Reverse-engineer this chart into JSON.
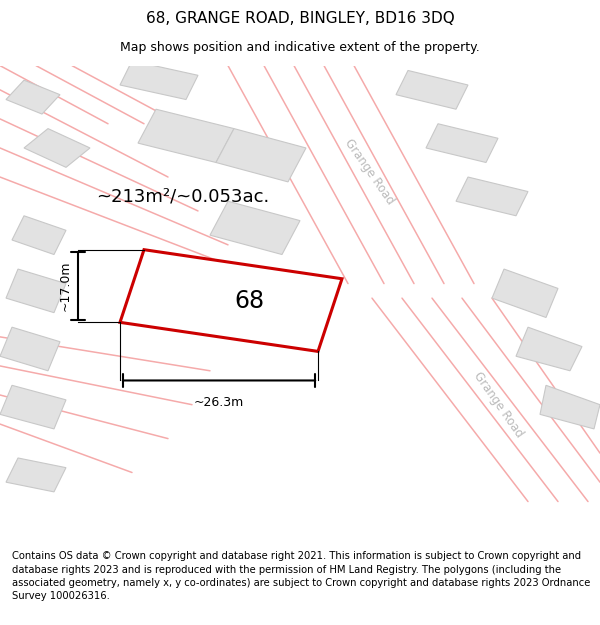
{
  "title": "68, GRANGE ROAD, BINGLEY, BD16 3DQ",
  "subtitle": "Map shows position and indicative extent of the property.",
  "footer": "Contains OS data © Crown copyright and database right 2021. This information is subject to Crown copyright and database rights 2023 and is reproduced with the permission of HM Land Registry. The polygons (including the associated geometry, namely x, y co-ordinates) are subject to Crown copyright and database rights 2023 Ordnance Survey 100026316.",
  "area_label": "~213m²/~0.053ac.",
  "width_label": "~26.3m",
  "height_label": "~17.0m",
  "plot_number": "68",
  "bg_color": "#ffffff",
  "map_bg": "#f7f7f7",
  "building_fill": "#e2e2e2",
  "building_edge": "#c8c8c8",
  "road_line_color": "#f5aaaa",
  "highlight_fill": "#ffffff",
  "highlight_edge": "#cc0000",
  "highlight_lw": 2.2,
  "title_fontsize": 11,
  "subtitle_fontsize": 9,
  "footer_fontsize": 7.2,
  "road_label_color": "#bbbbbb",
  "dimension_color": "#111111"
}
